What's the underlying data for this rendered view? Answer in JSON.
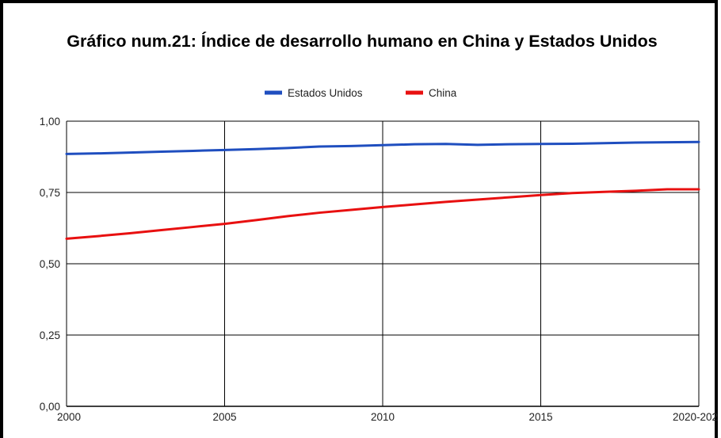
{
  "chart_data": {
    "type": "line",
    "title": "Gráfico num.21: Índice de desarrollo humano en China y Estados Unidos",
    "xlabel": "",
    "ylabel": "",
    "x": [
      2000,
      2001,
      2002,
      2003,
      2004,
      2005,
      2006,
      2007,
      2008,
      2009,
      2010,
      2011,
      2012,
      2013,
      2014,
      2015,
      2016,
      2017,
      2018,
      2019,
      2020
    ],
    "x_tick_labels": [
      "2000",
      "2005",
      "2010",
      "2015",
      "2020-202"
    ],
    "y_tick_labels": [
      "0,00",
      "0,25",
      "0,50",
      "0,75",
      "1,00"
    ],
    "ylim": [
      0,
      1
    ],
    "xlim": [
      2000,
      2020
    ],
    "grid": true,
    "legend_position": "top-center",
    "series": [
      {
        "name": "Estados Unidos",
        "color": "#1f4ebf",
        "values": [
          0.885,
          0.887,
          0.89,
          0.893,
          0.896,
          0.899,
          0.902,
          0.906,
          0.911,
          0.913,
          0.916,
          0.919,
          0.92,
          0.917,
          0.919,
          0.92,
          0.921,
          0.923,
          0.925,
          0.926,
          0.927
        ]
      },
      {
        "name": "China",
        "color": "#e81010",
        "values": [
          0.588,
          0.597,
          0.607,
          0.618,
          0.629,
          0.64,
          0.653,
          0.667,
          0.679,
          0.689,
          0.699,
          0.708,
          0.717,
          0.725,
          0.733,
          0.741,
          0.748,
          0.752,
          0.756,
          0.761,
          0.761
        ]
      }
    ]
  }
}
